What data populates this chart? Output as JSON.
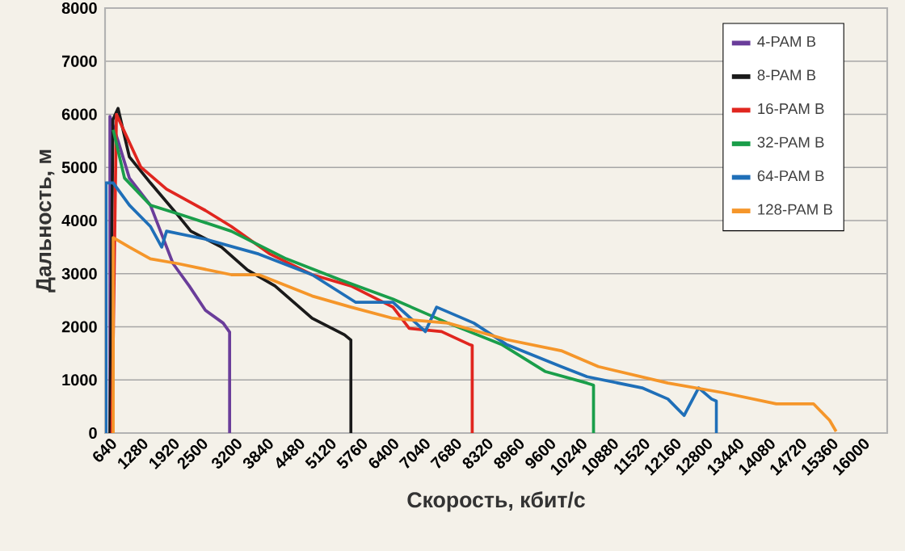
{
  "chart_data": {
    "type": "line",
    "xlabel": "Скорость, кбит/с",
    "ylabel": "Дальность, м",
    "xlim": [
      540,
      16500
    ],
    "ylim": [
      0,
      8000
    ],
    "xticks": [
      640,
      1280,
      1920,
      2500,
      3200,
      3840,
      4480,
      5120,
      5760,
      6400,
      7040,
      7680,
      8320,
      8960,
      9600,
      10240,
      10880,
      11520,
      12160,
      12800,
      13440,
      14080,
      14720,
      15360,
      16000
    ],
    "yticks": [
      0,
      1000,
      2000,
      3000,
      4000,
      5000,
      6000,
      7000,
      8000
    ],
    "grid": "y",
    "legend": "top right",
    "line_style": "solid",
    "series": [
      {
        "name": "4-PAM B",
        "color": "#6a3d9a",
        "x": [
          640,
          640,
          805,
          1036,
          1465,
          1927,
          2257,
          2587,
          2950,
          3082,
          3082
        ],
        "values": [
          0,
          5960,
          5500,
          4800,
          4290,
          3190,
          2770,
          2310,
          2070,
          1900,
          0
        ]
      },
      {
        "name": "8-PAM B",
        "color": "#1a1a1a",
        "x": [
          640,
          700,
          805,
          1036,
          1465,
          2026,
          2290,
          2917,
          3445,
          4007,
          4765,
          5425,
          5557,
          5557
        ],
        "values": [
          0,
          5900,
          6110,
          5200,
          4710,
          4100,
          3800,
          3500,
          3070,
          2770,
          2160,
          1850,
          1750,
          0
        ]
      },
      {
        "name": "16-PAM B",
        "color": "#e0261f",
        "x": [
          680,
          772,
          1267,
          1795,
          2587,
          3115,
          3907,
          4765,
          5557,
          6415,
          6745,
          7405,
          7966,
          8032,
          8032
        ],
        "values": [
          0,
          6000,
          5010,
          4590,
          4190,
          3890,
          3370,
          2980,
          2770,
          2370,
          1970,
          1910,
          1670,
          1650,
          0
        ]
      },
      {
        "name": "32-PAM B",
        "color": "#1a9e4a",
        "x": [
          706,
          937,
          1465,
          2125,
          3115,
          4237,
          5326,
          6415,
          7537,
          8626,
          9517,
          10375,
          10507,
          10507
        ],
        "values": [
          5710,
          4800,
          4290,
          4100,
          3800,
          3280,
          2890,
          2520,
          2070,
          1670,
          1160,
          940,
          900,
          0
        ]
      },
      {
        "name": "64-PAM B",
        "color": "#1f6fb8",
        "x": [
          560,
          560,
          706,
          1036,
          1465,
          1696,
          1795,
          2587,
          3676,
          4765,
          5656,
          6415,
          7075,
          7306,
          8065,
          8725,
          9847,
          10375,
          11497,
          12025,
          12355,
          12652,
          12916,
          13015,
          13015
        ],
        "values": [
          0,
          4710,
          4710,
          4290,
          3890,
          3500,
          3800,
          3650,
          3370,
          2980,
          2460,
          2460,
          1910,
          2370,
          2070,
          1670,
          1250,
          1060,
          850,
          640,
          330,
          850,
          640,
          600,
          0
        ]
      },
      {
        "name": "128-PAM B",
        "color": "#f5962a",
        "x": [
          706,
          706,
          1036,
          1465,
          2026,
          3115,
          3676,
          4765,
          5557,
          6415,
          7537,
          8725,
          9847,
          10606,
          12025,
          13147,
          14236,
          14995,
          15325,
          15457
        ],
        "values": [
          0,
          3680,
          3500,
          3280,
          3190,
          2980,
          2980,
          2580,
          2370,
          2160,
          2070,
          1760,
          1550,
          1250,
          940,
          760,
          550,
          550,
          240,
          30
        ]
      }
    ]
  }
}
